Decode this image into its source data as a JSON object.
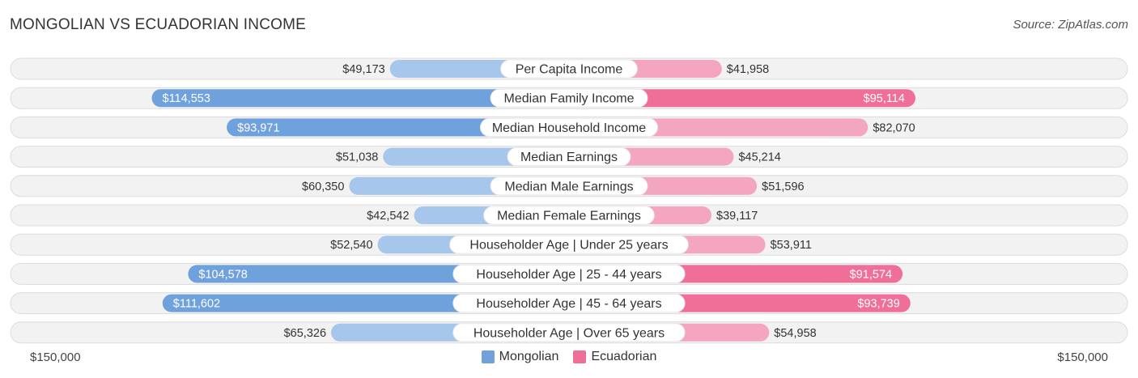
{
  "header": {
    "title": "MONGOLIAN VS ECUADORIAN INCOME",
    "source": "Source: ZipAtlas.com"
  },
  "axis": {
    "left_label": "$150,000",
    "right_label": "$150,000"
  },
  "legend": {
    "items": [
      {
        "label": "Mongolian",
        "color": "#6fa1dd"
      },
      {
        "label": "Ecuadorian",
        "color": "#ef6f98"
      }
    ]
  },
  "chart_data": {
    "type": "bar",
    "orientation": "horizontal-diverging",
    "title": "MONGOLIAN VS ECUADORIAN INCOME",
    "axis_max": 150000,
    "categories": [
      "Per Capita Income",
      "Median Family Income",
      "Median Household Income",
      "Median Earnings",
      "Median Male Earnings",
      "Median Female Earnings",
      "Householder Age | Under 25 years",
      "Householder Age | 25 - 44 years",
      "Householder Age | 45 - 64 years",
      "Householder Age | Over 65 years"
    ],
    "series": [
      {
        "name": "Mongolian",
        "side": "left",
        "color_strong": "#6fa1dd",
        "color_light": "#a6c6eb",
        "values": [
          49173,
          114553,
          93971,
          51038,
          60350,
          42542,
          52540,
          104578,
          111602,
          65326
        ],
        "labels": [
          "$49,173",
          "$114,553",
          "$93,971",
          "$51,038",
          "$60,350",
          "$42,542",
          "$52,540",
          "$104,578",
          "$111,602",
          "$65,326"
        ]
      },
      {
        "name": "Ecuadorian",
        "side": "right",
        "color_strong": "#ef6f98",
        "color_light": "#f4a6c0",
        "values": [
          41958,
          95114,
          82070,
          45214,
          51596,
          39117,
          53911,
          91574,
          93739,
          54958
        ],
        "labels": [
          "$41,958",
          "$95,114",
          "$82,070",
          "$45,214",
          "$51,596",
          "$39,117",
          "$53,911",
          "$91,574",
          "$93,739",
          "$54,958"
        ]
      }
    ],
    "inside_label_threshold": 90000
  }
}
